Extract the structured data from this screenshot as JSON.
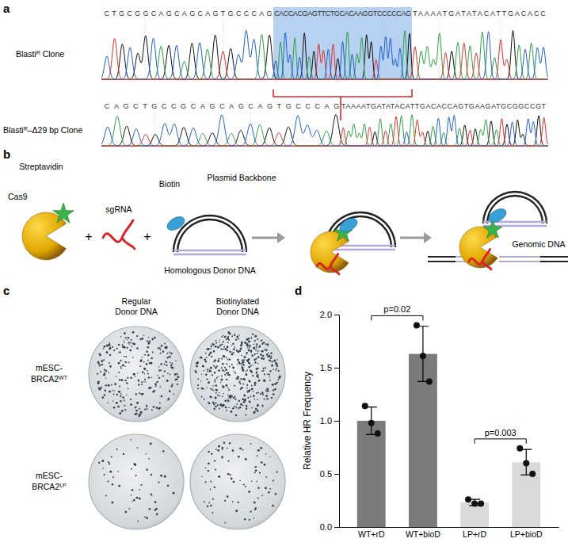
{
  "panel_labels": [
    "a",
    "b",
    "c",
    "d"
  ],
  "panel_a": {
    "clones": [
      {
        "label": {
          "text": "Blasti",
          "sup": "R",
          "suffix": " Clone"
        },
        "sequence": [
          {
            "text": "CTGCGGCAGCAGCAGTGCCCAG",
            "highlighted": false
          },
          {
            "text": "CACCACGAGTTCTGCACAAGGTCCCCCAG",
            "highlighted": true
          },
          {
            "text": "TAAAATGATATACATTGACACC",
            "highlighted": false
          }
        ]
      },
      {
        "label": {
          "text": "Blasti",
          "sup": "R",
          "suffix": "–Δ29 bp Clone"
        },
        "sequence": [
          {
            "text": "CAGCTGCCGCAGCAGCAGTGCCCAG",
            "highlighted": false
          },
          {
            "text": "TAAAATGATATACATTGACACCAGTGAAGATGCGGCCGT",
            "highlighted": false
          }
        ]
      }
    ]
  },
  "panel_b": {
    "streptavidin": "Streptavidin",
    "cas9": "Cas9",
    "sgrna": "sgRNA",
    "biotin": "Biotin",
    "plasmid": "Plasmid Backbone",
    "donor": "Homologous Donor DNA",
    "genomic": "Genomic DNA",
    "plus": "+"
  },
  "panel_c": {
    "columns": [
      [
        "Regular",
        "Donor DNA"
      ],
      [
        "Biotinylated",
        "Donor DNA"
      ]
    ],
    "rows": [
      {
        "lines": [
          "mESC-",
          "BRCA2"
        ],
        "sup": "WT"
      },
      {
        "lines": [
          "mESC-",
          "BRCA2"
        ],
        "sup": "LP"
      }
    ]
  },
  "chart_data": {
    "type": "bar",
    "categories": [
      "WT+rD",
      "WT+bioD",
      "LP+rD",
      "LP+bioD"
    ],
    "values": [
      1.0,
      1.63,
      0.23,
      0.61
    ],
    "errors": [
      0.13,
      0.26,
      0.03,
      0.12
    ],
    "points": [
      [
        1.14,
        0.98,
        0.88
      ],
      [
        1.9,
        1.61,
        1.37
      ],
      [
        0.26,
        0.22,
        0.22
      ],
      [
        0.74,
        0.6,
        0.5
      ]
    ],
    "colors": [
      "#7b7b7b",
      "#7b7b7b",
      "#d9d9d9",
      "#d9d9d9"
    ],
    "y_label": "Relative HR Frequency",
    "ylim": [
      0,
      2
    ],
    "yticks": [
      {
        "value": 0,
        "label": "0.0"
      },
      0.5,
      {
        "value": 1,
        "label": "1.0"
      },
      1.5,
      {
        "value": 2,
        "label": "2.0"
      }
    ],
    "annotations": [
      {
        "from": 0,
        "to": 1,
        "text": "p=0.02"
      },
      {
        "from": 2,
        "to": 3,
        "text": "p=0.003"
      }
    ]
  }
}
